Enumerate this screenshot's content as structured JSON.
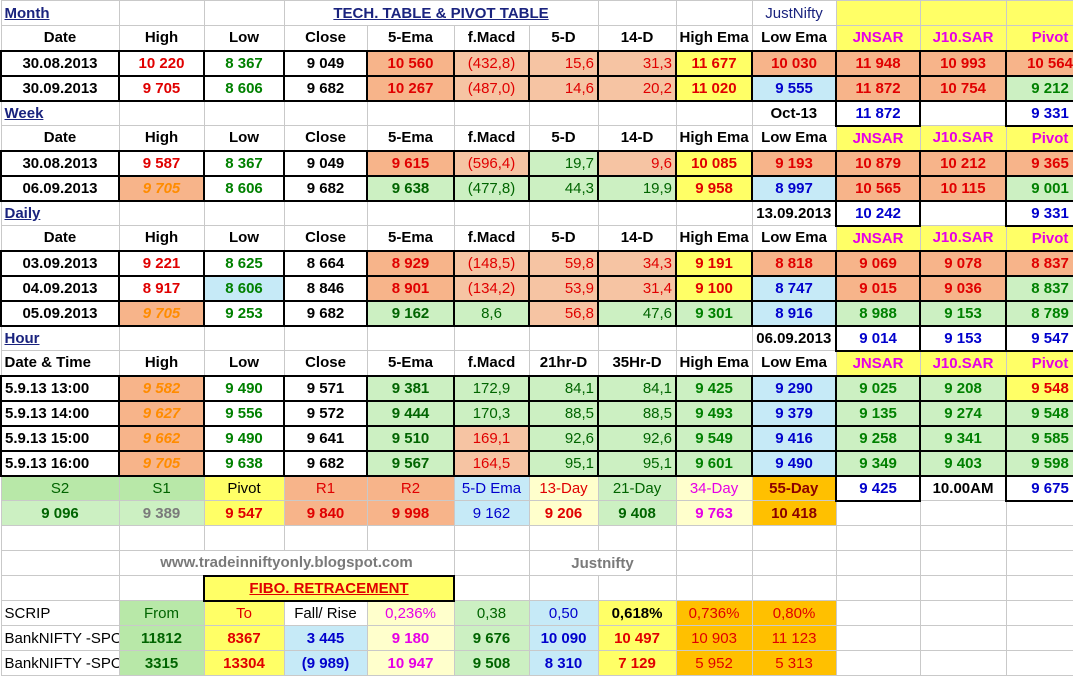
{
  "month": {
    "label": "Month",
    "title": "TECH. TABLE  &  PIVOT TABLE",
    "brand": "JustNifty",
    "headers": [
      "Date",
      "High",
      "Low",
      "Close",
      "5-Ema",
      "f.Macd",
      "5-D",
      "14-D",
      "High Ema",
      "Low Ema",
      "JNSAR",
      "J10.SAR",
      "Pivot"
    ],
    "rows": [
      [
        "30.08.2013",
        "10 220",
        "8 367",
        "9 049",
        "10 560",
        "(432,8)",
        "15,6",
        "31,3",
        "11 677",
        "10 030",
        "11 948",
        "10 993",
        "10 564"
      ],
      [
        "30.09.2013",
        "9 705",
        "8 606",
        "9 682",
        "10 267",
        "(487,0)",
        "14,6",
        "20,2",
        "11 020",
        "9 555",
        "11 872",
        "10 754",
        "9 212"
      ]
    ]
  },
  "week": {
    "label": "Week",
    "summary_date": "Oct-13",
    "summary_sar": "11 872",
    "summary_pivot": "9 331",
    "headers": [
      "Date",
      "High",
      "Low",
      "Close",
      "5-Ema",
      "f.Macd",
      "5-D",
      "14-D",
      "High Ema",
      "Low Ema",
      "JNSAR",
      "J10.SAR",
      "Pivot"
    ],
    "rows": [
      [
        "30.08.2013",
        "9 587",
        "8 367",
        "9 049",
        "9 615",
        "(596,4)",
        "19,7",
        "9,6",
        "10 085",
        "9 193",
        "10 879",
        "10 212",
        "9 365"
      ],
      [
        "06.09.2013",
        "9 705",
        "8 606",
        "9 682",
        "9 638",
        "(477,8)",
        "44,3",
        "19,9",
        "9 958",
        "8 997",
        "10 565",
        "10 115",
        "9 001"
      ]
    ]
  },
  "daily": {
    "label": "Daily",
    "summary_date": "13.09.2013",
    "summary_sar": "10 242",
    "summary_pivot": "9 331",
    "headers": [
      "Date",
      "High",
      "Low",
      "Close",
      "5-Ema",
      "f.Macd",
      "5-D",
      "14-D",
      "High Ema",
      "Low Ema",
      "JNSAR",
      "J10.SAR",
      "Pivot"
    ],
    "rows": [
      [
        "03.09.2013",
        "9 221",
        "8 625",
        "8 664",
        "8 929",
        "(148,5)",
        "59,8",
        "34,3",
        "9 191",
        "8 818",
        "9 069",
        "9 078",
        "8 837"
      ],
      [
        "04.09.2013",
        "8 917",
        "8 606",
        "8 846",
        "8 901",
        "(134,2)",
        "53,9",
        "31,4",
        "9 100",
        "8 747",
        "9 015",
        "9 036",
        "8 837"
      ],
      [
        "05.09.2013",
        "9 705",
        "9 253",
        "9 682",
        "9 162",
        "8,6",
        "56,8",
        "47,6",
        "9 301",
        "8 916",
        "8 988",
        "9 153",
        "8 789"
      ]
    ]
  },
  "hour": {
    "label": "Hour",
    "summary_date": "06.09.2013",
    "summary_sar": "9 014",
    "summary_j10": "9 153",
    "summary_pivot": "9 547",
    "headers": [
      "Date & Time",
      "High",
      "Low",
      "Close",
      "5-Ema",
      "f.Macd",
      "21hr-D",
      "35Hr-D",
      "High Ema",
      "Low Ema",
      "JNSAR",
      "J10.SAR",
      "Pivot"
    ],
    "rows": [
      [
        "5.9.13 13:00",
        "9 582",
        "9 490",
        "9 571",
        "9 381",
        "172,9",
        "84,1",
        "84,1",
        "9 425",
        "9 290",
        "9 025",
        "9 208",
        "9 548"
      ],
      [
        "5.9.13 14:00",
        "9 627",
        "9 556",
        "9 572",
        "9 444",
        "170,3",
        "88,5",
        "88,5",
        "9 493",
        "9 379",
        "9 135",
        "9 274",
        "9 548"
      ],
      [
        "5.9.13 15:00",
        "9 662",
        "9 490",
        "9 641",
        "9 510",
        "169,1",
        "92,6",
        "92,6",
        "9 549",
        "9 416",
        "9 258",
        "9 341",
        "9 585"
      ],
      [
        "5.9.13 16:00",
        "9 705",
        "9 638",
        "9 682",
        "9 567",
        "164,5",
        "95,1",
        "95,1",
        "9 601",
        "9 490",
        "9 349",
        "9 403",
        "9 598"
      ]
    ]
  },
  "levels": {
    "headers": [
      "S2",
      "S1",
      "Pivot",
      "R1",
      "R2",
      "5-D Ema",
      "13-Day",
      "21-Day",
      "34-Day",
      "55-Day"
    ],
    "values": [
      "9 096",
      "9 389",
      "9 547",
      "9 840",
      "9 998",
      "9 162",
      "9 206",
      "9 408",
      "9 763",
      "10 418"
    ],
    "extra_sar": "9 425",
    "extra_time": "10.00AM",
    "extra_pivot": "9 675"
  },
  "footer": {
    "site": "www.tradeinniftyonly.blogspot.com",
    "brand": "Justnifty"
  },
  "fibo": {
    "title": "FIBO. RETRACEMENT",
    "headers": [
      "SCRIP",
      "From",
      "To",
      "Fall/ Rise",
      "0,236%",
      "0,38",
      "0,50",
      "0,618%",
      "0,736%",
      "0,80%"
    ],
    "rows": [
      [
        "BankNIFTY -SPOT",
        "11812",
        "8367",
        "3 445",
        "9 180",
        "9 676",
        "10 090",
        "10 497",
        "10 903",
        "11 123"
      ],
      [
        "BankNIFTY -SPOT",
        "3315",
        "13304",
        "(9 989)",
        "10 947",
        "9 508",
        "8 310",
        "7 129",
        "5 952",
        "5 313"
      ]
    ]
  },
  "colors": {
    "high": "#e00000",
    "low": "#008000",
    "sar": "#e00000",
    "pivot": "#008000",
    "fill_orange": "#f7b48a",
    "fill_green": "#ccf0c2",
    "fill_yellow": "#ffff99",
    "fill_blue": "#c6eaf7",
    "fill_gold": "#ffc000"
  }
}
